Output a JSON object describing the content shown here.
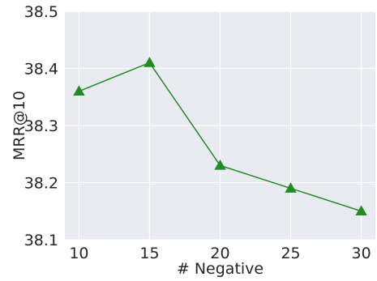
{
  "chart_data": {
    "type": "line",
    "title": "",
    "xlabel": "# Negative",
    "ylabel": "MRR@10",
    "x": [
      10,
      15,
      20,
      25,
      30
    ],
    "xticks": [
      "10",
      "15",
      "20",
      "25",
      "30"
    ],
    "xlim": [
      9,
      31
    ],
    "yticks": [
      "38.1",
      "38.2",
      "38.3",
      "38.4",
      "38.5"
    ],
    "ylim": [
      38.1,
      38.5
    ],
    "grid": true,
    "legend": "none",
    "series": [
      {
        "values": [
          38.36,
          38.41,
          38.23,
          38.19,
          38.15
        ],
        "color": "#228b22",
        "marker": "triangle"
      }
    ]
  },
  "style": {
    "plot_bg": "#eaeaf2",
    "grid_color": "#ffffff"
  }
}
